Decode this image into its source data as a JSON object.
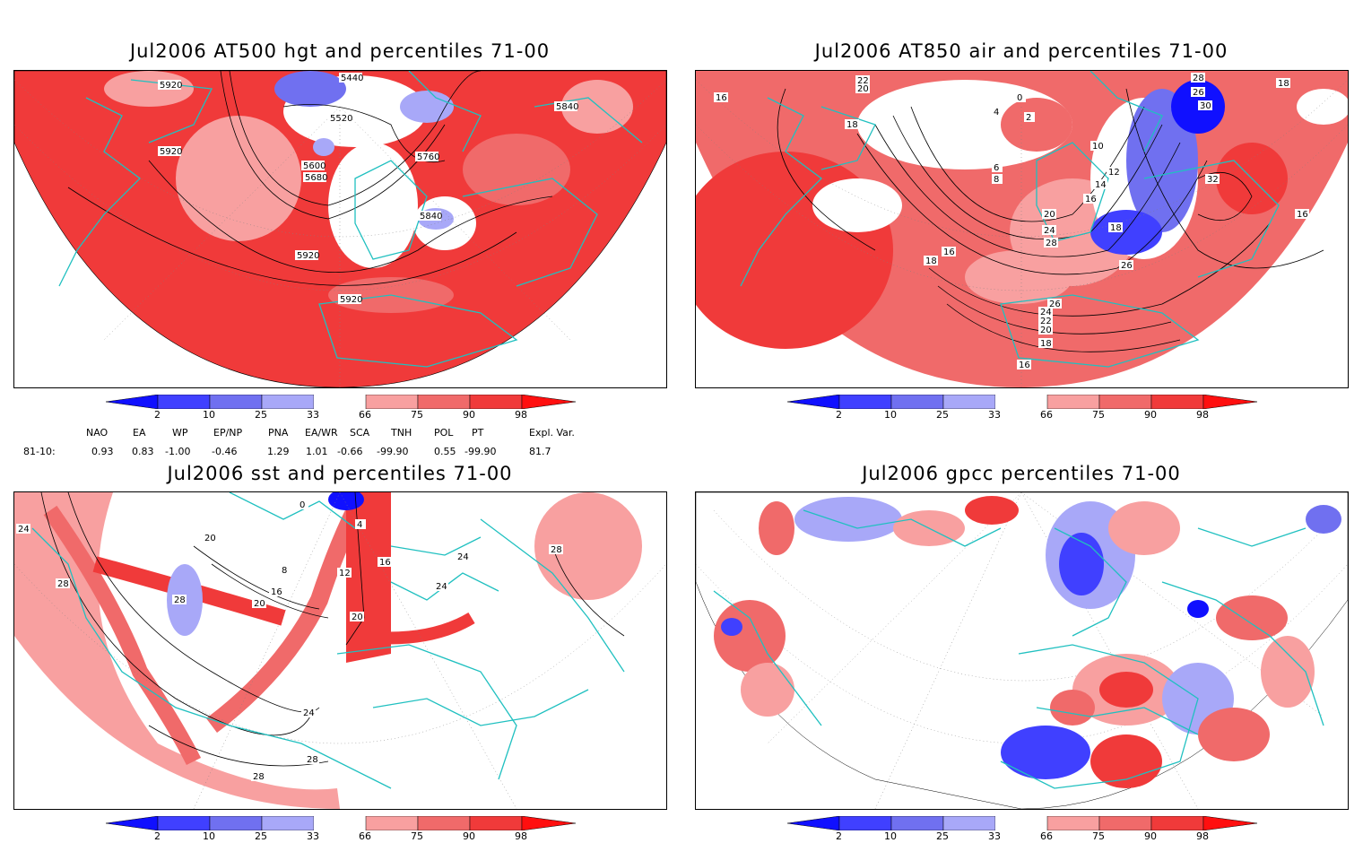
{
  "panels": [
    {
      "title": "Jul2006 AT500 hgt and percentiles 71-00",
      "contour_labels": [
        "5440",
        "5920",
        "5520",
        "5920",
        "5600",
        "5680",
        "5760",
        "5840",
        "5840",
        "5920",
        "5920"
      ]
    },
    {
      "title": "Jul2006 AT850 air and percentiles 71-00",
      "contour_labels": [
        "22",
        "20",
        "16",
        "18",
        "0",
        "4",
        "2",
        "28",
        "26",
        "30",
        "18",
        "10",
        "6",
        "8",
        "12",
        "14",
        "16",
        "32",
        "20",
        "24",
        "18",
        "26",
        "16",
        "16",
        "18",
        "28",
        "26",
        "24",
        "22",
        "20",
        "18",
        "16"
      ]
    },
    {
      "title": "Jul2006 sst and percentiles 71-00",
      "contour_labels": [
        "24",
        "0",
        "4",
        "20",
        "28",
        "8",
        "12",
        "16",
        "16",
        "20",
        "28",
        "24",
        "24",
        "20",
        "28",
        "24",
        "28",
        "28"
      ]
    },
    {
      "title": "Jul2006 gpcc percentiles 71-00",
      "contour_labels": []
    }
  ],
  "colorbar": {
    "labels": [
      "2",
      "10",
      "25",
      "33",
      "66",
      "75",
      "90",
      "98"
    ],
    "colors": {
      "blue_2": "#1010ff",
      "blue_10": "#4040ff",
      "blue_25": "#7070f0",
      "blue_33": "#a8a8f8",
      "white": "#ffffff",
      "red_66": "#f8a0a0",
      "red_75": "#f06a6a",
      "red_90": "#f03a3a",
      "red_98": "#ff0f0f"
    }
  },
  "indices": {
    "headers": [
      "NAO",
      "EA",
      "WP",
      "EP/NP",
      "PNA",
      "EA/WR",
      "SCA",
      "TNH",
      "POL",
      "PT",
      "Expl. Var."
    ],
    "row_label": "81-10:",
    "values": [
      "0.93",
      "0.83",
      "-1.00",
      "-0.46",
      "1.29",
      "1.01",
      "-0.66",
      "-99.90",
      "0.55",
      "-99.90",
      "81.7"
    ]
  },
  "map_style": {
    "coast_color": "#20c0c0",
    "contour_color": "#000000",
    "grid_color": "#808080"
  }
}
